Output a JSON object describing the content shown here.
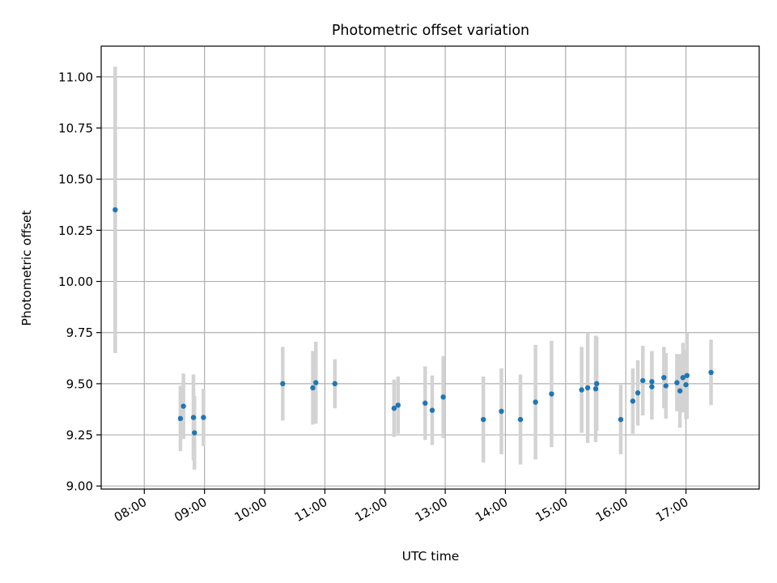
{
  "chart_data": {
    "type": "scatter",
    "title": "Photometric offset variation",
    "xlabel": "UTC time",
    "ylabel": "Photometric offset",
    "xlim": [
      "07:17",
      "18:13"
    ],
    "ylim": [
      8.985,
      11.15
    ],
    "x_ticks": [
      "08:00",
      "09:00",
      "10:00",
      "11:00",
      "12:00",
      "13:00",
      "14:00",
      "15:00",
      "16:00",
      "17:00"
    ],
    "y_ticks": [
      "9.00",
      "9.25",
      "9.50",
      "9.75",
      "10.00",
      "10.25",
      "10.50",
      "10.75",
      "11.00"
    ],
    "grid": true,
    "colors": {
      "marker": "#1f77b4",
      "errorbar": "#d3d3d3",
      "grid": "#b0b0b0"
    },
    "points": [
      {
        "time": "07:31",
        "y": 10.35,
        "err": 0.7
      },
      {
        "time": "08:36",
        "y": 9.33,
        "err": 0.16
      },
      {
        "time": "08:39",
        "y": 9.39,
        "err": 0.16
      },
      {
        "time": "08:49",
        "y": 9.335,
        "err": 0.21
      },
      {
        "time": "08:50",
        "y": 9.26,
        "err": 0.18
      },
      {
        "time": "08:59",
        "y": 9.335,
        "err": 0.14
      },
      {
        "time": "10:18",
        "y": 9.5,
        "err": 0.18
      },
      {
        "time": "10:48",
        "y": 9.48,
        "err": 0.18
      },
      {
        "time": "10:51",
        "y": 9.505,
        "err": 0.2
      },
      {
        "time": "11:10",
        "y": 9.5,
        "err": 0.12
      },
      {
        "time": "12:09",
        "y": 9.38,
        "err": 0.14
      },
      {
        "time": "12:13",
        "y": 9.395,
        "err": 0.14
      },
      {
        "time": "12:40",
        "y": 9.405,
        "err": 0.18
      },
      {
        "time": "12:47",
        "y": 9.37,
        "err": 0.17
      },
      {
        "time": "12:58",
        "y": 9.435,
        "err": 0.2
      },
      {
        "time": "13:38",
        "y": 9.325,
        "err": 0.21
      },
      {
        "time": "13:56",
        "y": 9.365,
        "err": 0.21
      },
      {
        "time": "14:15",
        "y": 9.325,
        "err": 0.22
      },
      {
        "time": "14:30",
        "y": 9.41,
        "err": 0.28
      },
      {
        "time": "14:46",
        "y": 9.45,
        "err": 0.26
      },
      {
        "time": "15:16",
        "y": 9.47,
        "err": 0.21
      },
      {
        "time": "15:22",
        "y": 9.48,
        "err": 0.27
      },
      {
        "time": "15:30",
        "y": 9.475,
        "err": 0.26
      },
      {
        "time": "15:31",
        "y": 9.5,
        "err": 0.23
      },
      {
        "time": "15:55",
        "y": 9.325,
        "err": 0.17
      },
      {
        "time": "16:07",
        "y": 9.415,
        "err": 0.16
      },
      {
        "time": "16:12",
        "y": 9.455,
        "err": 0.16
      },
      {
        "time": "16:17",
        "y": 9.515,
        "err": 0.17
      },
      {
        "time": "16:26",
        "y": 9.51,
        "err": 0.15
      },
      {
        "time": "16:26",
        "y": 9.485,
        "err": 0.16
      },
      {
        "time": "16:38",
        "y": 9.53,
        "err": 0.15
      },
      {
        "time": "16:40",
        "y": 9.49,
        "err": 0.16
      },
      {
        "time": "16:51",
        "y": 9.505,
        "err": 0.14
      },
      {
        "time": "16:54",
        "y": 9.465,
        "err": 0.18
      },
      {
        "time": "16:57",
        "y": 9.53,
        "err": 0.17
      },
      {
        "time": "17:00",
        "y": 9.495,
        "err": 0.17
      },
      {
        "time": "17:01",
        "y": 9.54,
        "err": 0.21
      },
      {
        "time": "17:25",
        "y": 9.555,
        "err": 0.16
      }
    ]
  }
}
